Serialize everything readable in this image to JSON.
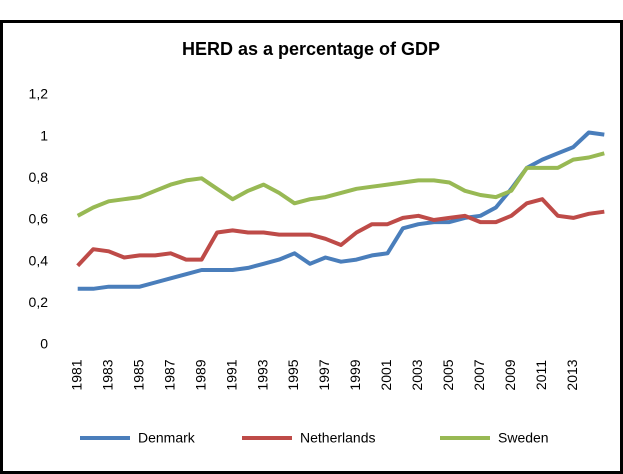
{
  "chart_data": {
    "type": "line",
    "title": "HERD as a percentage of GDP",
    "categories": [
      "1981",
      null,
      "1983",
      null,
      "1985",
      null,
      "1987",
      null,
      "1989",
      null,
      "1991",
      null,
      "1993",
      null,
      "1995",
      null,
      "1997",
      null,
      "1999",
      null,
      "2001",
      null,
      "2003",
      null,
      "2005",
      null,
      "2007",
      null,
      "2009",
      null,
      "2011",
      null,
      "2013",
      null,
      null
    ],
    "series": [
      {
        "name": "Denmark",
        "color": "#4a7ebb",
        "values": [
          0.27,
          0.27,
          0.28,
          0.28,
          0.28,
          0.3,
          0.32,
          0.34,
          0.36,
          0.36,
          0.36,
          0.37,
          0.39,
          0.41,
          0.44,
          0.39,
          0.42,
          0.4,
          0.41,
          0.43,
          0.44,
          0.56,
          0.58,
          0.59,
          0.59,
          0.61,
          0.62,
          0.66,
          0.75,
          0.85,
          0.89,
          0.92,
          0.95,
          1.02,
          1.01
        ]
      },
      {
        "name": "Netherlands",
        "color": "#be4b48",
        "values": [
          0.38,
          0.46,
          0.45,
          0.42,
          0.43,
          0.43,
          0.44,
          0.41,
          0.41,
          0.54,
          0.55,
          0.54,
          0.54,
          0.53,
          0.53,
          0.53,
          0.51,
          0.48,
          0.54,
          0.58,
          0.58,
          0.61,
          0.62,
          0.6,
          0.61,
          0.62,
          0.59,
          0.59,
          0.62,
          0.68,
          0.7,
          0.62,
          0.61,
          0.63,
          0.64
        ]
      },
      {
        "name": "Sweden",
        "color": "#98b954",
        "values": [
          0.62,
          0.66,
          0.69,
          0.7,
          0.71,
          0.74,
          0.77,
          0.79,
          0.8,
          0.75,
          0.7,
          0.74,
          0.77,
          0.73,
          0.68,
          0.7,
          0.71,
          0.73,
          0.75,
          0.76,
          0.77,
          0.78,
          0.79,
          0.79,
          0.78,
          0.74,
          0.72,
          0.71,
          0.74,
          0.85,
          0.85,
          0.85,
          0.89,
          0.9,
          0.92
        ]
      }
    ],
    "ylim": [
      0,
      1.2
    ],
    "yticks": [
      0,
      {
        "value": 0.2,
        "label": "0,2"
      },
      {
        "value": 0.4,
        "label": "0,4"
      },
      {
        "value": 0.6,
        "label": "0,6"
      },
      {
        "value": 0.8,
        "label": "0,8"
      },
      1,
      {
        "value": 1.2,
        "label": "1,2"
      }
    ],
    "legend": "bottom"
  }
}
